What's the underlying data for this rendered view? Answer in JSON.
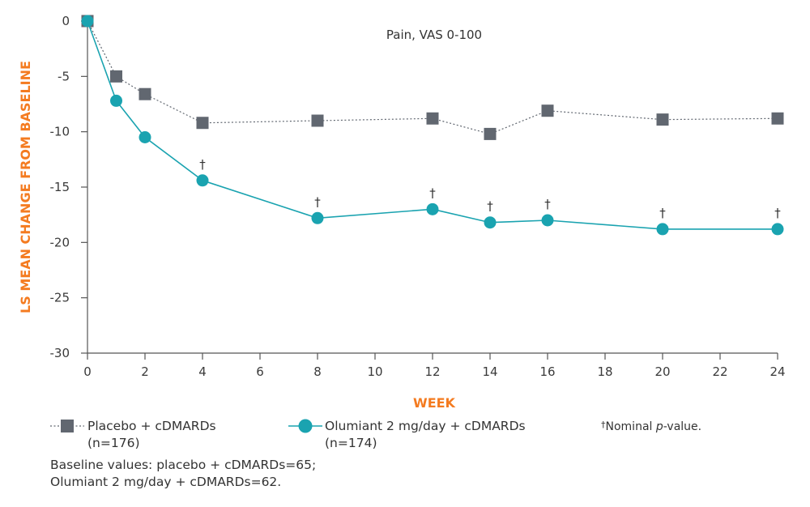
{
  "chart_data": {
    "type": "line",
    "subtitle": "Pain, VAS 0-100",
    "xlabel": "WEEK",
    "ylabel": "LS MEAN CHANGE FROM BASELINE",
    "xlim": [
      0,
      24
    ],
    "ylim": [
      -30,
      0
    ],
    "xticks": [
      "0",
      "2",
      "4",
      "6",
      "8",
      "10",
      "12",
      "14",
      "16",
      "18",
      "20",
      "22",
      "24"
    ],
    "yticks": [
      "0",
      "-5",
      "-10",
      "-15",
      "-20",
      "-25",
      "-30"
    ],
    "grid": false,
    "series": [
      {
        "name_line1": "Placebo + cDMARDs",
        "name_line2": "(n=176)",
        "marker": "square",
        "line_style": "dotted",
        "color": "#616770",
        "x": [
          0,
          1,
          2,
          4,
          8,
          12,
          14,
          16,
          20,
          24
        ],
        "y": [
          0,
          -5.0,
          -6.6,
          -9.2,
          -9.0,
          -8.8,
          -10.2,
          -8.1,
          -8.9,
          -8.8
        ]
      },
      {
        "name_line1": "Olumiant 2 mg/day + cDMARDs",
        "name_line2": "(n=174)",
        "marker": "circle",
        "line_style": "solid",
        "color": "#1aa3b0",
        "x": [
          0,
          1,
          2,
          4,
          8,
          12,
          14,
          16,
          20,
          24
        ],
        "y": [
          0,
          -7.2,
          -10.5,
          -14.4,
          -17.8,
          -17.0,
          -18.2,
          -18.0,
          -18.8,
          -18.8
        ],
        "dagger_at_x": [
          4,
          8,
          12,
          14,
          16,
          20,
          24
        ]
      }
    ],
    "dagger_symbol": "†",
    "footnote": {
      "symbol": "†",
      "text_before": "Nominal ",
      "text_italic": "p",
      "text_after": "-value."
    },
    "baseline_note": [
      "Baseline values: placebo + cDMARDs=65;",
      "Olumiant 2 mg/day + cDMARDs=62."
    ]
  }
}
